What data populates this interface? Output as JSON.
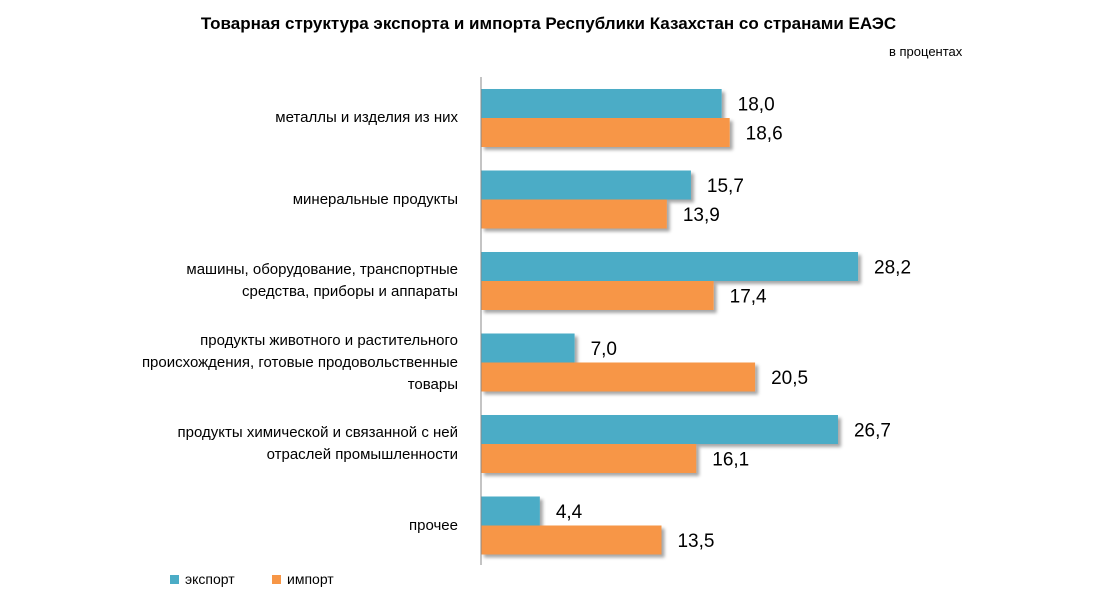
{
  "chart_data": {
    "type": "bar",
    "orientation": "horizontal",
    "title": "Товарная структура экспорта и импорта Республики Казахстан со странами ЕАЭС",
    "unit_note": "в процентах",
    "categories": [
      [
        "металлы и изделия  из них"
      ],
      [
        "минеральные продукты"
      ],
      [
        "машины, оборудование, транспортные",
        "средства, приборы и аппараты"
      ],
      [
        "продукты животного и растительного",
        "происхождения, готовые продовольственные",
        "товары"
      ],
      [
        "продукты химической  и связанной с ней",
        "отраслей промышленности"
      ],
      [
        "прочее"
      ]
    ],
    "series": [
      {
        "name": "экспорт",
        "color": "#4bacc6",
        "values": [
          18.0,
          15.7,
          28.2,
          7.0,
          26.7,
          4.4
        ],
        "labels": [
          "18,0",
          "15,7",
          "28,2",
          "7,0",
          "26,7",
          "4,4"
        ]
      },
      {
        "name": "импорт",
        "color": "#f79646",
        "values": [
          18.6,
          13.9,
          17.4,
          20.5,
          16.1,
          13.5
        ],
        "labels": [
          "18,6",
          "13,9",
          "17,4",
          "20,5",
          "16,1",
          "13,5"
        ]
      }
    ],
    "xlim": [
      0,
      30
    ],
    "grid": false,
    "legend_position": "bottom-left"
  }
}
